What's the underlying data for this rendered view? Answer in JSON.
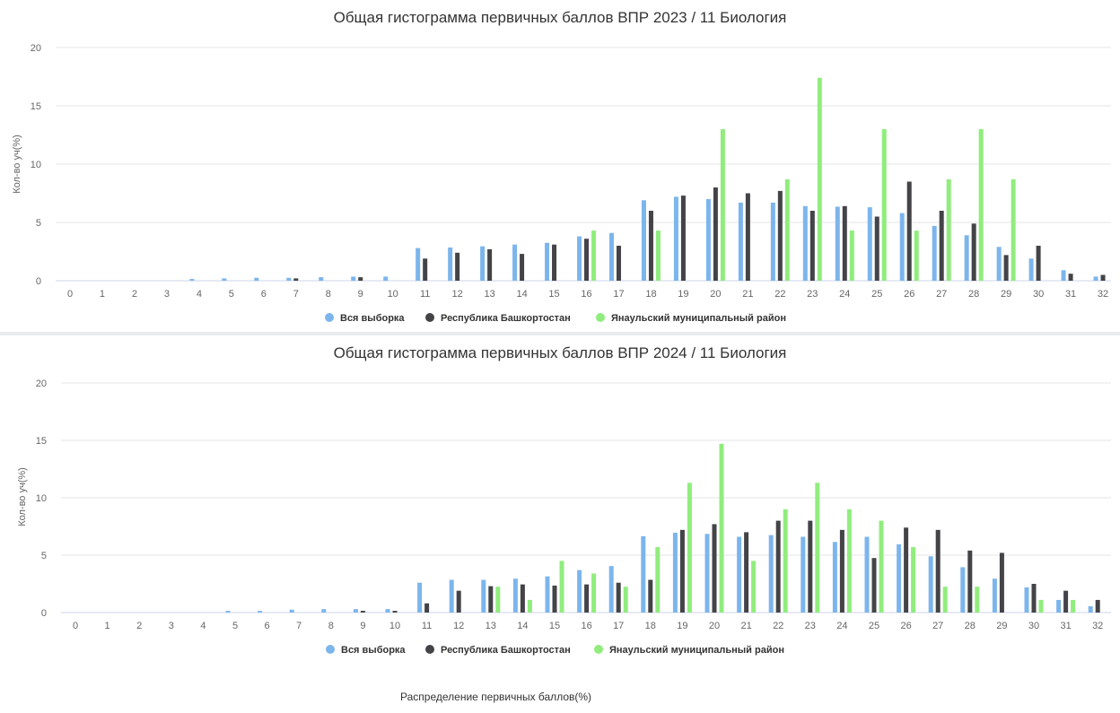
{
  "colors": {
    "all": "#7cb5ec",
    "bashkortostan": "#434348",
    "yanaul": "#90ed7d"
  },
  "footer": "Распределение первичных баллов(%)",
  "chart_data": [
    {
      "type": "bar",
      "title": "Общая гистограмма первичных баллов ВПР 2023 / 11 Биология",
      "ylabel": "Кол-во уч(%)",
      "ylim": [
        0,
        20
      ],
      "yticks": [
        0,
        5,
        10,
        15,
        20
      ],
      "grid": true,
      "legend_position": "bottom-center",
      "categories": [
        "0",
        "1",
        "2",
        "3",
        "4",
        "5",
        "6",
        "7",
        "8",
        "9",
        "10",
        "11",
        "12",
        "13",
        "14",
        "15",
        "16",
        "17",
        "18",
        "19",
        "20",
        "21",
        "22",
        "23",
        "24",
        "25",
        "26",
        "27",
        "28",
        "29",
        "30",
        "31",
        "32"
      ],
      "series": [
        {
          "name": "Вся выборка",
          "color_key": "all",
          "values": [
            0,
            0,
            0,
            0,
            0.15,
            0.2,
            0.25,
            0.25,
            0.3,
            0.35,
            0.35,
            2.8,
            2.85,
            2.95,
            3.1,
            3.25,
            3.8,
            4.1,
            6.9,
            7.2,
            7.0,
            6.7,
            6.7,
            6.4,
            6.35,
            6.3,
            5.8,
            4.7,
            3.9,
            2.9,
            1.9,
            0.9,
            0.35
          ]
        },
        {
          "name": "Республика Башкортостан",
          "color_key": "bashkortostan",
          "values": [
            0,
            0,
            0,
            0,
            0,
            0,
            0,
            0.2,
            0,
            0.3,
            0,
            1.9,
            2.4,
            2.7,
            2.3,
            3.1,
            3.6,
            3.0,
            6.0,
            7.3,
            8.0,
            7.5,
            7.7,
            6.0,
            6.4,
            5.5,
            8.5,
            6.0,
            4.9,
            2.2,
            3.0,
            0.6,
            0.5
          ]
        },
        {
          "name": "Янаульский муниципальный район",
          "color_key": "yanaul",
          "values": [
            0,
            0,
            0,
            0,
            0,
            0,
            0,
            0,
            0,
            0,
            0,
            0,
            0,
            0,
            0,
            0,
            4.3,
            0,
            4.3,
            0,
            13.0,
            0,
            8.7,
            17.4,
            4.3,
            13.0,
            4.3,
            8.7,
            13.0,
            8.7,
            0,
            0,
            0
          ]
        }
      ]
    },
    {
      "type": "bar",
      "title": "Общая гистограмма первичных баллов ВПР 2024 / 11 Биология",
      "ylabel": "Кол-во уч(%)",
      "ylim": [
        0,
        20
      ],
      "yticks": [
        0,
        5,
        10,
        15,
        20
      ],
      "grid": true,
      "legend_position": "bottom-center",
      "categories": [
        "0",
        "1",
        "2",
        "3",
        "4",
        "5",
        "6",
        "7",
        "8",
        "9",
        "10",
        "11",
        "12",
        "13",
        "14",
        "15",
        "16",
        "17",
        "18",
        "19",
        "20",
        "21",
        "22",
        "23",
        "24",
        "25",
        "26",
        "27",
        "28",
        "29",
        "30",
        "31",
        "32"
      ],
      "series": [
        {
          "name": "Вся выборка",
          "color_key": "all",
          "values": [
            0,
            0,
            0,
            0,
            0,
            0.15,
            0.15,
            0.25,
            0.3,
            0.3,
            0.3,
            2.6,
            2.85,
            2.85,
            2.95,
            3.15,
            3.7,
            4.05,
            6.65,
            6.95,
            6.85,
            6.6,
            6.75,
            6.6,
            6.15,
            6.6,
            5.95,
            4.9,
            3.95,
            2.95,
            2.2,
            1.1,
            0.55
          ]
        },
        {
          "name": "Республика Башкортостан",
          "color_key": "bashkortostan",
          "values": [
            0,
            0,
            0,
            0,
            0,
            0,
            0,
            0,
            0,
            0.15,
            0.15,
            0.8,
            1.9,
            2.3,
            2.45,
            2.35,
            2.45,
            2.6,
            2.85,
            7.2,
            7.7,
            7.0,
            8.0,
            8.0,
            7.2,
            4.75,
            7.4,
            7.2,
            5.4,
            5.2,
            2.5,
            1.9,
            1.1
          ]
        },
        {
          "name": "Янаульский муниципальный район",
          "color_key": "yanaul",
          "values": [
            0,
            0,
            0,
            0,
            0,
            0,
            0,
            0,
            0,
            0,
            0,
            0,
            0,
            2.25,
            1.1,
            4.5,
            3.4,
            2.25,
            5.7,
            11.3,
            14.7,
            4.5,
            9.0,
            11.3,
            9.0,
            8.0,
            5.7,
            2.25,
            2.25,
            0,
            1.1,
            1.1,
            0
          ]
        }
      ]
    }
  ]
}
